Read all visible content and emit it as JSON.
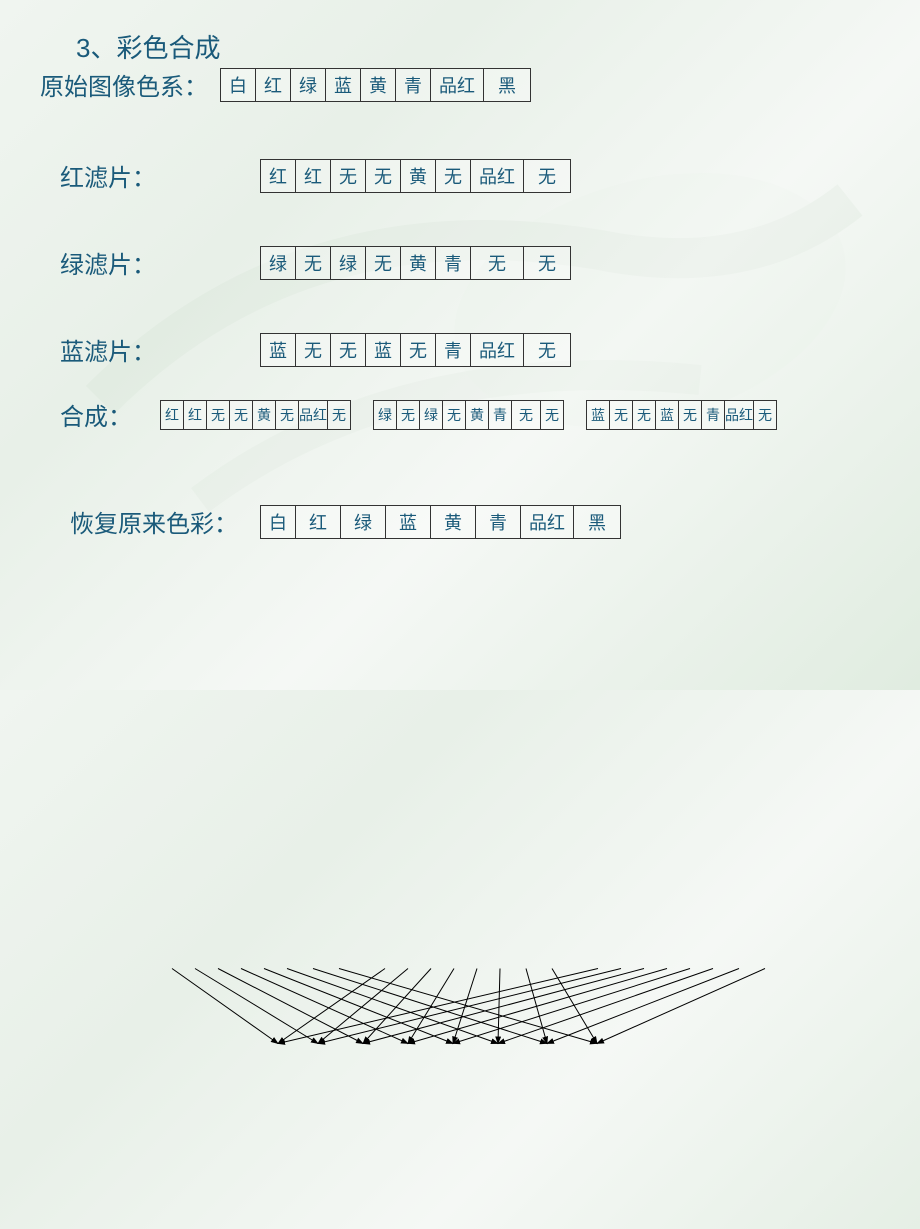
{
  "title": "3、彩色合成",
  "labels": {
    "original": "原始图像色系：",
    "redFilter": "红滤片：",
    "greenFilter": "绿滤片：",
    "blueFilter": "蓝滤片：",
    "synthesis": "合成：",
    "restore": "恢复原来色彩："
  },
  "colors": {
    "text": "#1a5a7a",
    "border": "#333333",
    "bg_start": "#f0f5f0",
    "bg_end": "#e0ece0"
  },
  "original": [
    "白",
    "红",
    "绿",
    "蓝",
    "黄",
    "青",
    "品红",
    "黑"
  ],
  "redFilter": [
    "红",
    "红",
    "无",
    "无",
    "黄",
    "无",
    "品红",
    "无"
  ],
  "greenFilter": [
    "绿",
    "无",
    "绿",
    "无",
    "黄",
    "青",
    "无",
    "无"
  ],
  "blueFilter": [
    "蓝",
    "无",
    "无",
    "蓝",
    "无",
    "青",
    "品红",
    "无"
  ],
  "synthRed": [
    "红",
    "红",
    "无",
    "无",
    "黄",
    "无",
    "品红",
    "无"
  ],
  "synthGreen": [
    "绿",
    "无",
    "绿",
    "无",
    "黄",
    "青",
    "无",
    "无"
  ],
  "synthBlue": [
    "蓝",
    "无",
    "无",
    "蓝",
    "无",
    "青",
    "品红",
    "无"
  ],
  "restore": [
    "白",
    "红",
    "绿",
    "蓝",
    "黄",
    "青",
    "品红",
    "黑"
  ],
  "cellWidths": {
    "main": [
      36,
      36,
      36,
      36,
      36,
      36,
      54,
      48
    ],
    "synth": [
      24,
      24,
      24,
      24,
      24,
      24,
      30,
      24
    ],
    "restore": [
      36,
      46,
      46,
      46,
      46,
      46,
      54,
      48
    ]
  },
  "layout": {
    "row_gap": 52,
    "title_fontsize": 26,
    "label_fontsize": 24,
    "cell_fontsize": 18,
    "synth_cell_fontsize": 14
  }
}
